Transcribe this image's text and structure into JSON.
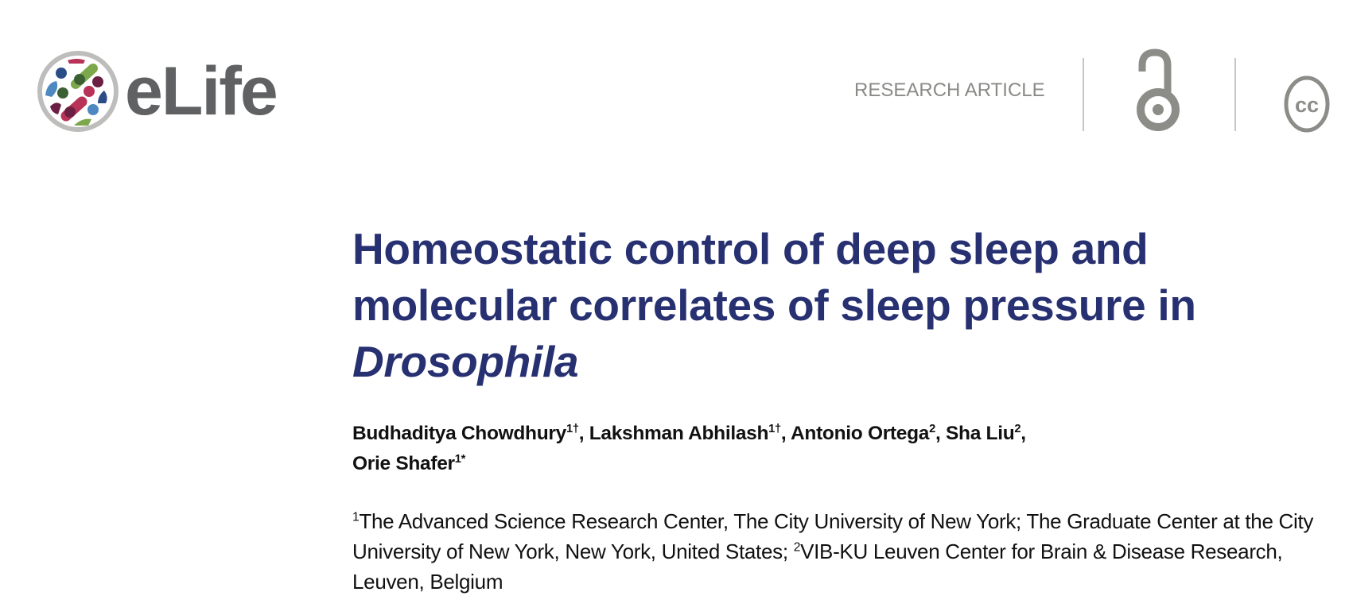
{
  "header": {
    "logo_text": "eLife",
    "article_type": "RESEARCH ARTICLE",
    "icons": [
      "open-access-icon",
      "creative-commons-icon"
    ],
    "cc_icon_text": "cc"
  },
  "article": {
    "title_part1": "Homeostatic control of deep sleep and molecular correlates of sleep pressure in ",
    "title_italic": "Drosophila",
    "title_color": "#273071",
    "authors": [
      {
        "name": "Budhaditya Chowdhury",
        "sup": "1†",
        "sep": ", "
      },
      {
        "name": "Lakshman Abhilash",
        "sup": "1†",
        "sep": ", "
      },
      {
        "name": "Antonio Ortega",
        "sup": "2",
        "sep": ", "
      },
      {
        "name": "Sha Liu",
        "sup": "2",
        "sep": ", "
      },
      {
        "name": "Orie Shafer",
        "sup": "1*",
        "sep": ""
      }
    ],
    "affiliations": [
      {
        "sup": "1",
        "text": "The Advanced Science Research Center, The City University of New York; The Graduate Center at the City University of New York, New York, United States; "
      },
      {
        "sup": "2",
        "text": "VIB-KU Leuven Center for Brain & Disease Research, Leuven, Belgium"
      }
    ]
  }
}
